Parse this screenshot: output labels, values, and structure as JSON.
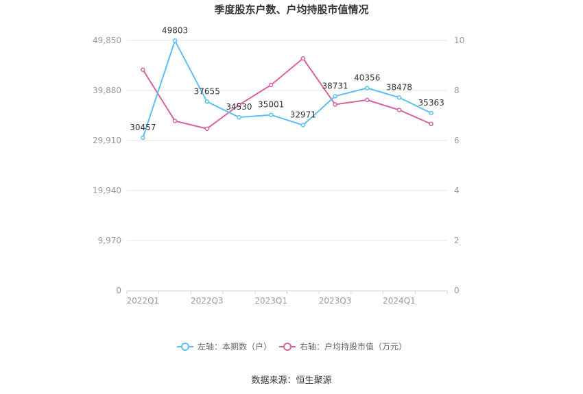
{
  "chart_data": {
    "type": "line",
    "title": "季度股东户数、户均持股市值情况",
    "categories": [
      "2022Q1",
      "2022Q2",
      "2022Q3",
      "2022Q4",
      "2023Q1",
      "2023Q2",
      "2023Q3",
      "2023Q4",
      "2024Q1",
      "2024Q2"
    ],
    "x_tick_labels": [
      "2022Q1",
      "2022Q3",
      "2023Q1",
      "2023Q3",
      "2024Q1"
    ],
    "left_axis": {
      "ticks": [
        "0",
        "9,970",
        "19,940",
        "29,910",
        "39,880",
        "49,850"
      ],
      "ylim": [
        0,
        49850
      ]
    },
    "right_axis": {
      "ticks": [
        "0",
        "2",
        "4",
        "6",
        "8",
        "10"
      ],
      "ylim": [
        0,
        10
      ]
    },
    "series": [
      {
        "name": "左轴：本期数（户）",
        "axis": "left",
        "color": "#5bc0f0",
        "values": [
          30457,
          49803,
          37655,
          34530,
          35001,
          32971,
          38731,
          40356,
          38478,
          35363
        ],
        "labels": [
          "30457",
          "49803",
          "37655",
          "34530",
          "35001",
          "32971",
          "38731",
          "40356",
          "38478",
          "35363"
        ]
      },
      {
        "name": "右轴：户均持股市值（万元）",
        "axis": "right",
        "color": "#d9619f",
        "values": [
          8.83,
          6.78,
          6.47,
          7.42,
          8.22,
          9.28,
          7.44,
          7.62,
          7.22,
          6.66
        ]
      }
    ],
    "legend_position": "bottom",
    "grid": true
  },
  "footer": {
    "source": "数据来源：恒生聚源"
  }
}
